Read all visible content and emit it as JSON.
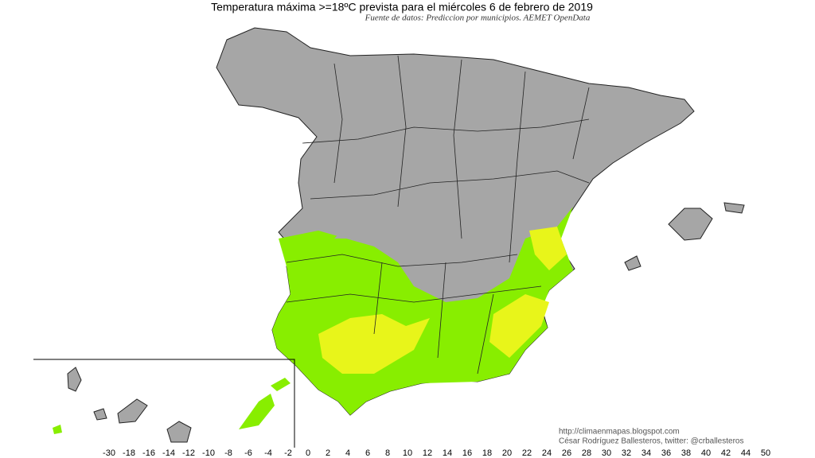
{
  "title": "Temperatura máxima >=18ºC prevista para el miércoles 6 de febrero de 2019",
  "subtitle": "Fuente de datos: Prediccion por municipios. AEMET OpenData",
  "credits": [
    "http://climaenmapas.blogspot.com",
    "César Rodríguez Ballesteros, twitter: @crballesteros"
  ],
  "legend": {
    "labels": [
      -30,
      -18,
      -16,
      -14,
      -12,
      -10,
      -8,
      -6,
      -4,
      -2,
      0,
      2,
      4,
      6,
      8,
      10,
      12,
      14,
      16,
      18,
      20,
      22,
      24,
      26,
      28,
      30,
      32,
      34,
      36,
      38,
      40,
      42,
      44,
      50
    ]
  }
}
